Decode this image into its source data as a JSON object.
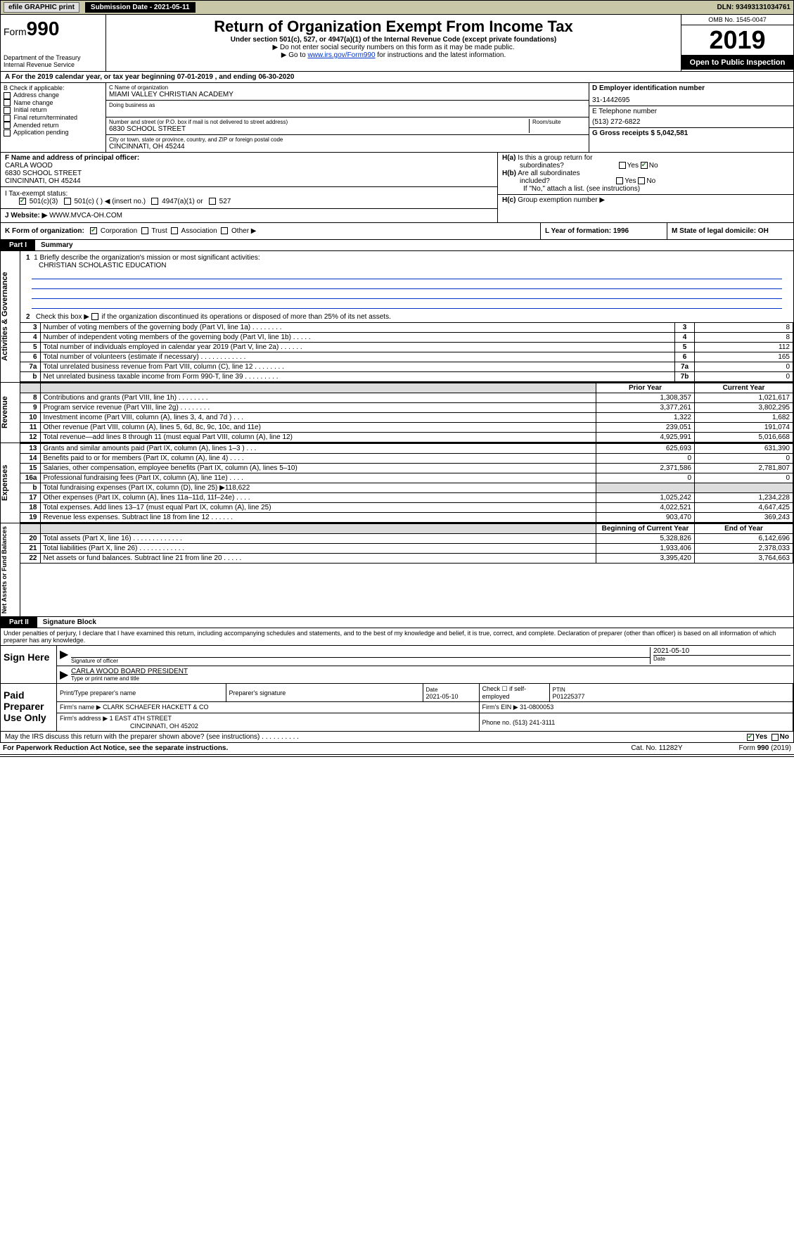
{
  "top": {
    "efile": "efile GRAPHIC print",
    "sub_label": "Submission Date - 2021-05-11",
    "dln": "DLN: 93493131034761"
  },
  "header": {
    "form_prefix": "Form",
    "form_num": "990",
    "dept": "Department of the Treasury\nInternal Revenue Service",
    "title": "Return of Organization Exempt From Income Tax",
    "sub1": "Under section 501(c), 527, or 4947(a)(1) of the Internal Revenue Code (except private foundations)",
    "sub2": "▶ Do not enter social security numbers on this form as it may be made public.",
    "sub3_pre": "▶ Go to ",
    "sub3_link": "www.irs.gov/Form990",
    "sub3_post": " for instructions and the latest information.",
    "omb": "OMB No. 1545-0047",
    "year": "2019",
    "open": "Open to Public Inspection"
  },
  "period": "A For the 2019 calendar year, or tax year beginning 07-01-2019    , and ending 06-30-2020",
  "box_b": {
    "hdr": "B Check if applicable:",
    "items": [
      "Address change",
      "Name change",
      "Initial return",
      "Final return/terminated",
      "Amended return",
      "Application pending"
    ]
  },
  "box_c": {
    "name_lbl": "C Name of organization",
    "name": "MIAMI VALLEY CHRISTIAN ACADEMY",
    "dba_lbl": "Doing business as",
    "addr_lbl": "Number and street (or P.O. box if mail is not delivered to street address)",
    "room_lbl": "Room/suite",
    "addr": "6830 SCHOOL STREET",
    "city_lbl": "City or town, state or province, country, and ZIP or foreign postal code",
    "city": "CINCINNATI, OH  45244"
  },
  "box_d": {
    "lbl": "D Employer identification number",
    "val": "31-1442695"
  },
  "box_e": {
    "lbl": "E Telephone number",
    "val": "(513) 272-6822"
  },
  "box_g": {
    "lbl": "G Gross receipts $ 5,042,581"
  },
  "box_f": {
    "lbl": "F Name and address of principal officer:",
    "name": "CARLA WOOD",
    "addr": "6830 SCHOOL STREET",
    "city": "CINCINNATI, OH  45244"
  },
  "box_h": {
    "a_lbl": "H(a)  Is this a group return for subordinates?",
    "yes": "Yes",
    "no": "No",
    "b_lbl": "H(b)  Are all subordinates included?",
    "b_note": "If \"No,\" attach a list. (see instructions)",
    "c_lbl": "H(c)  Group exemption number ▶"
  },
  "tax_status": {
    "lbl": "I   Tax-exempt status:",
    "opts": [
      "501(c)(3)",
      "501(c) (  ) ◀ (insert no.)",
      "4947(a)(1) or",
      "527"
    ]
  },
  "website": {
    "lbl": "J   Website: ▶",
    "val": "WWW.MVCA-OH.COM"
  },
  "box_k": {
    "lbl": "K Form of organization:",
    "opts": [
      "Corporation",
      "Trust",
      "Association",
      "Other ▶"
    ]
  },
  "box_l": {
    "lbl": "L Year of formation: 1996"
  },
  "box_m": {
    "lbl": "M State of legal domicile: OH"
  },
  "part1": {
    "tab": "Part I",
    "title": "Summary",
    "q1_lbl": "1  Briefly describe the organization's mission or most significant activities:",
    "q1_val": "CHRISTIAN SCHOLASTIC EDUCATION",
    "q2": "2   Check this box ▶ ☐  if the organization discontinued its operations or disposed of more than 25% of its net assets.",
    "vtab_governance": "Activities & Governance",
    "vtab_revenue": "Revenue",
    "vtab_expenses": "Expenses",
    "vtab_net": "Net Assets or Fund Balances",
    "rows_gov": [
      {
        "n": "3",
        "d": "Number of voting members of the governing body (Part VI, line 1a)  .    .    .    .    .    .    .    .",
        "b": "3",
        "v": "8"
      },
      {
        "n": "4",
        "d": "Number of independent voting members of the governing body (Part VI, line 1b)  .    .    .    .    .",
        "b": "4",
        "v": "8"
      },
      {
        "n": "5",
        "d": "Total number of individuals employed in calendar year 2019 (Part V, line 2a)  .    .    .    .    .    .",
        "b": "5",
        "v": "112"
      },
      {
        "n": "6",
        "d": "Total number of volunteers (estimate if necessary)  .    .    .    .    .    .    .    .    .    .    .    .",
        "b": "6",
        "v": "165"
      },
      {
        "n": "7a",
        "d": "Total unrelated business revenue from Part VIII, column (C), line 12  .    .    .    .    .    .    .    .",
        "b": "7a",
        "v": "0"
      },
      {
        "n": "b",
        "d": "Net unrelated business taxable income from Form 990-T, line 39  .    .    .    .    .    .    .    .    .",
        "b": "7b",
        "v": "0"
      }
    ],
    "col_prior": "Prior Year",
    "col_current": "Current Year",
    "rows_rev": [
      {
        "n": "8",
        "d": "Contributions and grants (Part VIII, line 1h)  .    .    .    .    .    .    .    .",
        "p": "1,308,357",
        "c": "1,021,617"
      },
      {
        "n": "9",
        "d": "Program service revenue (Part VIII, line 2g)  .    .    .    .    .    .    .    .",
        "p": "3,377,261",
        "c": "3,802,295"
      },
      {
        "n": "10",
        "d": "Investment income (Part VIII, column (A), lines 3, 4, and 7d )  .    .    .",
        "p": "1,322",
        "c": "1,682"
      },
      {
        "n": "11",
        "d": "Other revenue (Part VIII, column (A), lines 5, 6d, 8c, 9c, 10c, and 11e)",
        "p": "239,051",
        "c": "191,074"
      },
      {
        "n": "12",
        "d": "Total revenue—add lines 8 through 11 (must equal Part VIII, column (A), line 12)",
        "p": "4,925,991",
        "c": "5,016,668"
      }
    ],
    "rows_exp": [
      {
        "n": "13",
        "d": "Grants and similar amounts paid (Part IX, column (A), lines 1–3 )  .    .    .",
        "p": "625,693",
        "c": "631,390"
      },
      {
        "n": "14",
        "d": "Benefits paid to or for members (Part IX, column (A), line 4)  .    .    .    .",
        "p": "0",
        "c": "0"
      },
      {
        "n": "15",
        "d": "Salaries, other compensation, employee benefits (Part IX, column (A), lines 5–10)",
        "p": "2,371,586",
        "c": "2,781,807"
      },
      {
        "n": "16a",
        "d": "Professional fundraising fees (Part IX, column (A), line 11e)  .    .    .    .",
        "p": "0",
        "c": "0"
      },
      {
        "n": "b",
        "d": "Total fundraising expenses (Part IX, column (D), line 25) ▶118,622",
        "p": "",
        "c": "",
        "shade": true
      },
      {
        "n": "17",
        "d": "Other expenses (Part IX, column (A), lines 11a–11d, 11f–24e)  .    .    .    .",
        "p": "1,025,242",
        "c": "1,234,228"
      },
      {
        "n": "18",
        "d": "Total expenses. Add lines 13–17 (must equal Part IX, column (A), line 25)",
        "p": "4,022,521",
        "c": "4,647,425"
      },
      {
        "n": "19",
        "d": "Revenue less expenses. Subtract line 18 from line 12  .    .    .    .    .    .",
        "p": "903,470",
        "c": "369,243"
      }
    ],
    "col_begin": "Beginning of Current Year",
    "col_end": "End of Year",
    "rows_net": [
      {
        "n": "20",
        "d": "Total assets (Part X, line 16)  .    .    .    .    .    .    .    .    .    .    .    .    .",
        "p": "5,328,826",
        "c": "6,142,696"
      },
      {
        "n": "21",
        "d": "Total liabilities (Part X, line 26)  .    .    .    .    .    .    .    .    .    .    .    .",
        "p": "1,933,406",
        "c": "2,378,033"
      },
      {
        "n": "22",
        "d": "Net assets or fund balances. Subtract line 21 from line 20  .    .    .    .    .",
        "p": "3,395,420",
        "c": "3,764,663"
      }
    ]
  },
  "part2": {
    "tab": "Part II",
    "title": "Signature Block",
    "decl": "Under penalties of perjury, I declare that I have examined this return, including accompanying schedules and statements, and to the best of my knowledge and belief, it is true, correct, and complete. Declaration of preparer (other than officer) is based on all information of which preparer has any knowledge."
  },
  "sign": {
    "here": "Sign Here",
    "sig_officer": "Signature of officer",
    "date_val": "2021-05-10",
    "date_lbl": "Date",
    "name": "CARLA WOOD  BOARD PRESIDENT",
    "name_lbl": "Type or print name and title"
  },
  "prep": {
    "here": "Paid Preparer Use Only",
    "r1": {
      "a": "Print/Type preparer's name",
      "b": "Preparer's signature",
      "c_lbl": "Date",
      "c": "2021-05-10",
      "d": "Check ☐ if self-employed",
      "e_lbl": "PTIN",
      "e": "P01225377"
    },
    "r2": {
      "a_lbl": "Firm's name    ▶",
      "a": "CLARK SCHAEFER HACKETT & CO",
      "b_lbl": "Firm's EIN ▶",
      "b": "31-0800053"
    },
    "r3": {
      "a_lbl": "Firm's address ▶",
      "a": "1 EAST 4TH STREET",
      "a2": "CINCINNATI, OH  45202",
      "b_lbl": "Phone no. (513) 241-3111"
    }
  },
  "discuss": {
    "q": "May the IRS discuss this return with the preparer shown above? (see instructions)  .    .    .    .    .    .    .    .    .    .",
    "yes": "Yes",
    "no": "No"
  },
  "footer": {
    "a": "For Paperwork Reduction Act Notice, see the separate instructions.",
    "b": "Cat. No. 11282Y",
    "c": "Form 990 (2019)"
  }
}
